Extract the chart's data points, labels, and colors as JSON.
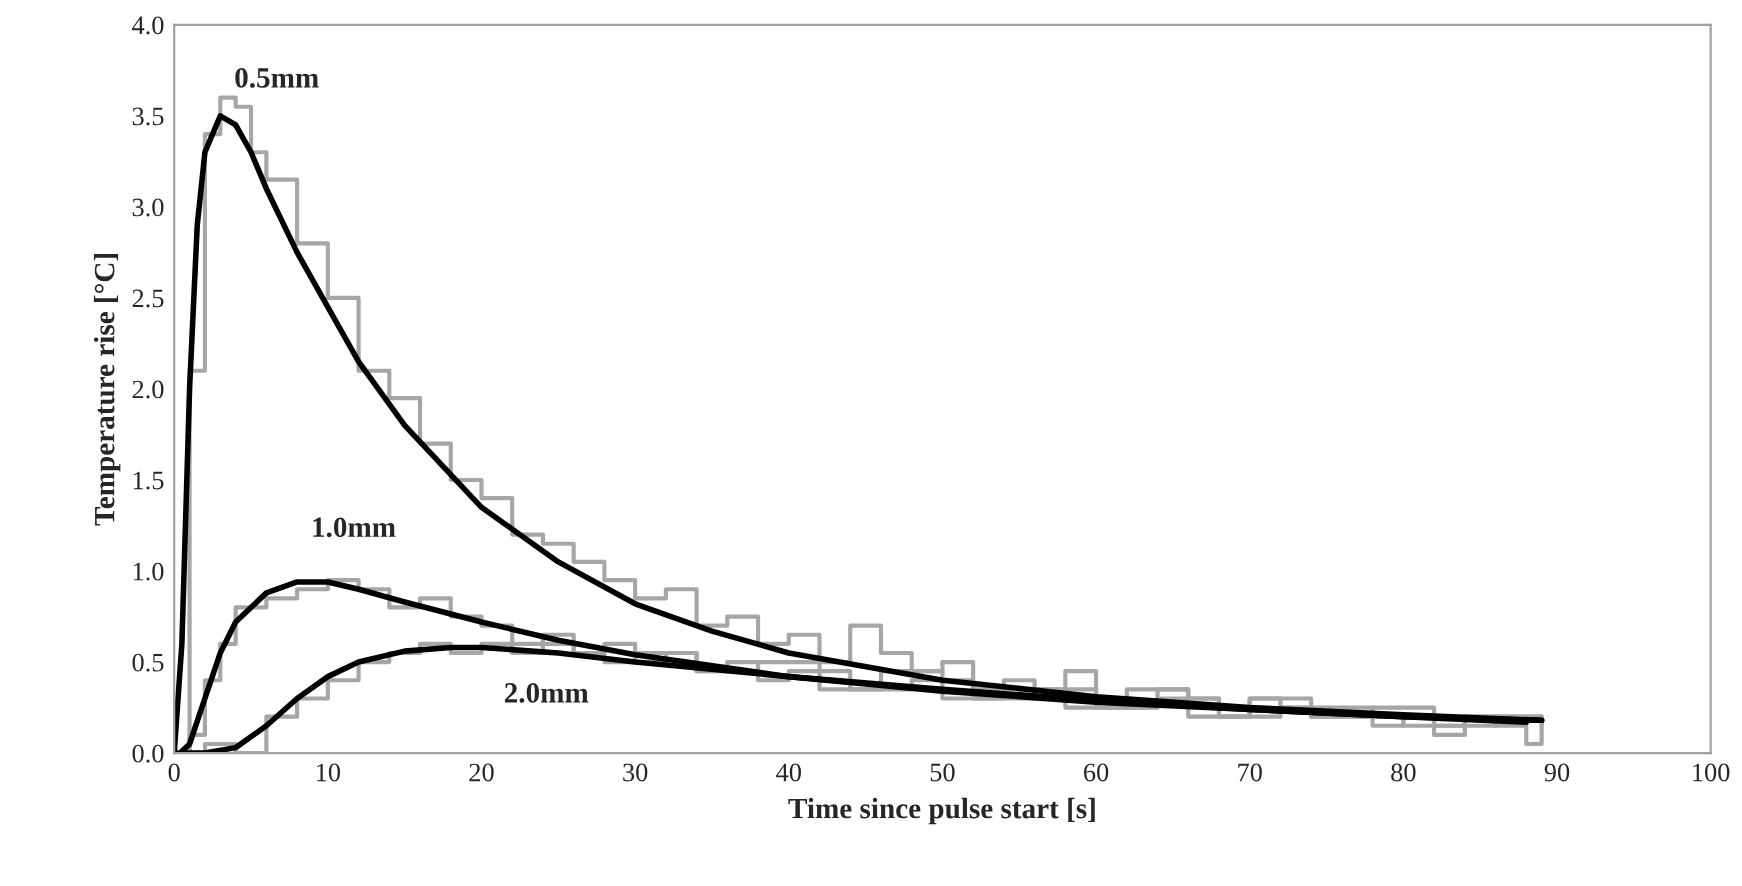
{
  "chart_data": {
    "type": "line",
    "xlabel": "Time since pulse start [s]",
    "ylabel": "Temperature rise [°C]",
    "xlim": [
      0,
      100
    ],
    "xticks": [
      0,
      10,
      20,
      30,
      40,
      50,
      60,
      70,
      80,
      90,
      100
    ],
    "ylim": [
      0,
      4
    ],
    "yticks": [
      {
        "value": 0,
        "label": "0.0"
      },
      {
        "value": 0.5,
        "label": "0.5"
      },
      {
        "value": 1,
        "label": "1.0"
      },
      {
        "value": 1.5,
        "label": "1.5"
      },
      {
        "value": 2,
        "label": "2.0"
      },
      {
        "value": 2.5,
        "label": "2.5"
      },
      {
        "value": 3,
        "label": "3.0"
      },
      {
        "value": 3.5,
        "label": "3.5"
      },
      {
        "value": 4,
        "label": "4.0"
      }
    ],
    "grid": false,
    "legend": false,
    "series": [
      {
        "type": "step",
        "color": "#a6a6a6",
        "x": [
          0,
          1,
          2,
          3,
          4,
          5,
          6,
          8,
          10,
          12,
          14,
          16,
          18,
          20,
          22,
          24,
          26,
          28,
          30,
          32,
          34,
          36,
          38,
          40,
          42,
          44,
          46,
          48,
          50,
          52,
          54,
          56,
          58,
          60,
          62,
          64,
          66,
          68,
          70,
          72,
          74,
          76,
          78,
          80,
          82,
          84,
          86,
          88,
          89
        ],
        "values": [
          0,
          2.1,
          3.4,
          3.6,
          3.55,
          3.3,
          3.15,
          2.8,
          2.5,
          2.1,
          1.95,
          1.7,
          1.5,
          1.4,
          1.2,
          1.15,
          1.05,
          0.95,
          0.85,
          0.9,
          0.7,
          0.75,
          0.6,
          0.65,
          0.5,
          0.7,
          0.55,
          0.45,
          0.5,
          0.35,
          0.4,
          0.3,
          0.45,
          0.3,
          0.25,
          0.35,
          0.3,
          0.2,
          0.3,
          0.25,
          0.2,
          0.25,
          0.15,
          0.2,
          0.1,
          0.2,
          0.15,
          0.05,
          0.2
        ]
      },
      {
        "type": "step",
        "color": "#a6a6a6",
        "x": [
          0,
          1,
          2,
          3,
          4,
          6,
          8,
          10,
          12,
          14,
          16,
          18,
          20,
          22,
          24,
          26,
          28,
          30,
          32,
          34,
          36,
          38,
          40,
          44,
          48,
          52,
          56,
          60,
          64,
          68,
          72,
          76,
          80,
          84,
          89
        ],
        "values": [
          0,
          0.1,
          0.4,
          0.6,
          0.8,
          0.85,
          0.9,
          0.95,
          0.9,
          0.8,
          0.85,
          0.75,
          0.7,
          0.6,
          0.65,
          0.55,
          0.6,
          0.5,
          0.55,
          0.45,
          0.5,
          0.4,
          0.45,
          0.35,
          0.4,
          0.3,
          0.35,
          0.25,
          0.3,
          0.2,
          0.25,
          0.2,
          0.15,
          0.2,
          0.2
        ]
      },
      {
        "type": "step",
        "color": "#a6a6a6",
        "x": [
          0,
          2,
          4,
          6,
          8,
          10,
          12,
          14,
          16,
          18,
          20,
          22,
          24,
          26,
          28,
          30,
          34,
          38,
          42,
          46,
          50,
          54,
          58,
          62,
          66,
          70,
          74,
          78,
          82,
          86,
          89
        ],
        "values": [
          0,
          0.05,
          0,
          0.2,
          0.3,
          0.4,
          0.5,
          0.55,
          0.6,
          0.55,
          0.6,
          0.55,
          0.6,
          0.55,
          0.5,
          0.55,
          0.45,
          0.5,
          0.35,
          0.45,
          0.3,
          0.35,
          0.25,
          0.35,
          0.2,
          0.3,
          0.2,
          0.25,
          0.15,
          0.2,
          0.15
        ]
      },
      {
        "color": "#000000",
        "x": [
          0,
          0.5,
          1,
          1.5,
          2,
          3,
          4,
          5,
          6,
          8,
          10,
          12,
          15,
          20,
          25,
          30,
          35,
          40,
          50,
          60,
          70,
          80,
          89
        ],
        "values": [
          0,
          0.6,
          2.0,
          2.9,
          3.3,
          3.5,
          3.45,
          3.3,
          3.1,
          2.75,
          2.45,
          2.15,
          1.8,
          1.35,
          1.05,
          0.82,
          0.67,
          0.55,
          0.4,
          0.31,
          0.25,
          0.21,
          0.18
        ]
      },
      {
        "color": "#000000",
        "x": [
          0.5,
          1,
          2,
          3,
          4,
          6,
          8,
          10,
          12,
          15,
          20,
          25,
          30,
          40,
          50,
          60,
          70,
          80,
          89
        ],
        "values": [
          0.01,
          0.05,
          0.3,
          0.55,
          0.72,
          0.88,
          0.94,
          0.94,
          0.9,
          0.83,
          0.72,
          0.62,
          0.54,
          0.42,
          0.34,
          0.28,
          0.24,
          0.2,
          0.18
        ]
      },
      {
        "color": "#000000",
        "x": [
          0,
          2,
          4,
          6,
          8,
          10,
          12,
          15,
          18,
          20,
          25,
          30,
          40,
          50,
          60,
          70,
          80,
          88
        ],
        "values": [
          0,
          0,
          0.03,
          0.15,
          0.3,
          0.42,
          0.5,
          0.56,
          0.58,
          0.58,
          0.55,
          0.5,
          0.42,
          0.35,
          0.29,
          0.24,
          0.2,
          0.17
        ]
      }
    ],
    "annotations": [
      {
        "text": "0.5mm",
        "x": 3,
        "y": 3.5
      },
      {
        "text": "1.0mm",
        "x": 8,
        "y": 0.94
      },
      {
        "text": "2.0mm",
        "x": 20,
        "y": 0.58
      }
    ]
  }
}
